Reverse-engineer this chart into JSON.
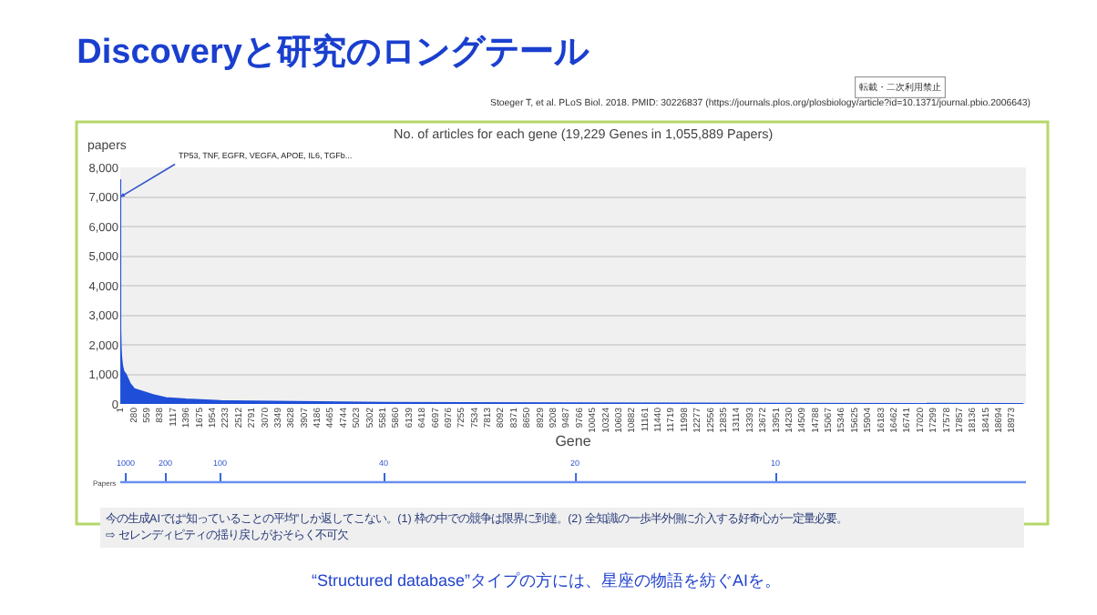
{
  "chart_data": {
    "type": "area",
    "title": "Discoveryと研究のロングテール",
    "subtitle": "No. of articles for each gene (19,229 Genes in 1,055,889 Papers)",
    "ylabel": "papers",
    "xlabel": "Gene",
    "annotations": [
      "転載・二次利用禁止",
      "Stoeger T, et al. PLoS Biol. 2018. PMID: 30226837 (https://journals.plos.org/plosbiology/article?id=10.1371/journal.pbio.2006643)",
      "今の生成AIでは“知っていることの平均”しか返してこない。(1) 枠の中での競争は限界に到達。(2) 全知識の一歩半外側に介入する好奇心が一定量必要。",
      "⇨ セレンディピティの揺り戻しがおそらく不可欠",
      "“Structured database”タイプの方には、星座の物語を紡ぐAIを。",
      {
        "text": "TP53, TNF, EGFR, VEGFA, APOE, IL6, TGFb...",
        "x": 1,
        "y": 7000
      },
      "Papers",
      {
        "text": "1000",
        "x": 117
      },
      {
        "text": "200",
        "x": 970
      },
      {
        "text": "100",
        "x": 2133
      },
      {
        "text": "40",
        "x": 5625
      },
      {
        "text": "20",
        "x": 9700
      },
      {
        "text": "10",
        "x": 13965
      }
    ],
    "x": [
      1,
      2,
      5,
      10,
      20,
      40,
      70,
      117,
      200,
      300,
      500,
      700,
      970,
      1400,
      2133,
      5625,
      9700,
      13965,
      19229
    ],
    "series": [
      {
        "color": "#1f4fd8",
        "values": [
          7600,
          2500,
          2300,
          1900,
          1600,
          1300,
          1100,
          1000,
          700,
          500,
          400,
          300,
          200,
          150,
          100,
          40,
          20,
          10,
          0
        ]
      }
    ],
    "xlim": [
      0,
      19280
    ],
    "xticks": [
      1,
      280,
      559,
      838,
      1117,
      1396,
      1675,
      1954,
      2233,
      2512,
      2791,
      3070,
      3349,
      3628,
      3907,
      4186,
      4465,
      4744,
      5023,
      5302,
      5581,
      5860,
      6139,
      6418,
      6697,
      6976,
      7255,
      7534,
      7813,
      8092,
      8371,
      8650,
      8929,
      9208,
      9487,
      9766,
      10045,
      10324,
      10603,
      10882,
      11161,
      11440,
      11719,
      11998,
      12277,
      12556,
      12835,
      13114,
      13393,
      13672,
      13951,
      14230,
      14509,
      14788,
      15067,
      15346,
      15625,
      15904,
      16183,
      16462,
      16741,
      17020,
      17299,
      17578,
      17857,
      18136,
      18415,
      18694,
      18973
    ],
    "ylim": [
      0,
      8000
    ],
    "yticks": [
      {
        "value": 0,
        "label": "0"
      },
      {
        "value": 1000,
        "label": "1,000"
      },
      {
        "value": 2000,
        "label": "2,000"
      },
      {
        "value": 3000,
        "label": "3,000"
      },
      {
        "value": 4000,
        "label": "4,000"
      },
      {
        "value": 5000,
        "label": "5,000"
      },
      {
        "value": 6000,
        "label": "6,000"
      },
      {
        "value": 7000,
        "label": "7,000"
      },
      {
        "value": 8000,
        "label": "8,000"
      }
    ],
    "grid": "y"
  }
}
